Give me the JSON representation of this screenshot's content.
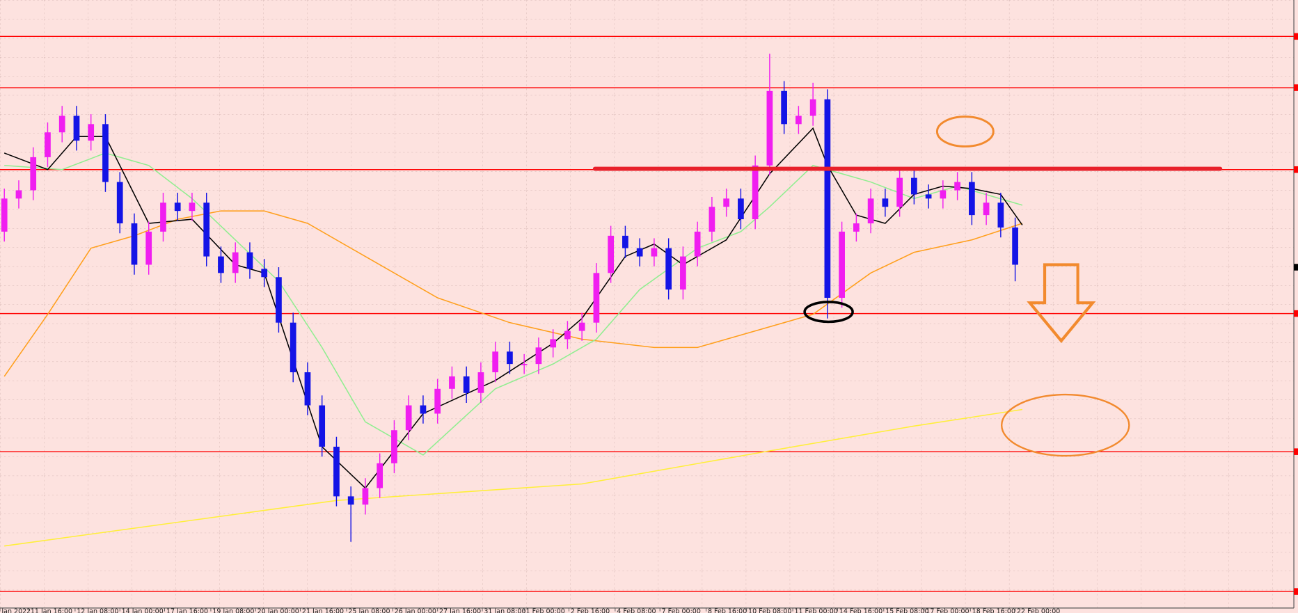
{
  "chart_data": {
    "type": "candlestick",
    "xlim": [
      -0.3,
      89.3
    ],
    "ylim": [
      5,
      740
    ],
    "xticks": [
      {
        "value": -0.3,
        "label": "Jan 2022"
      },
      {
        "value": 1.7,
        "label": "11 Jan 16:00"
      },
      {
        "value": 4.9,
        "label": "12 Jan 08:00"
      },
      {
        "value": 8,
        "label": "14 Jan 00:00"
      },
      {
        "value": 11.1,
        "label": "17 Jan 16:00"
      },
      {
        "value": 14.3,
        "label": "19 Jan 08:00"
      },
      {
        "value": 17.4,
        "label": "20 Jan 00:00"
      },
      {
        "value": 20.5,
        "label": "21 Jan 16:00"
      },
      {
        "value": 23.7,
        "label": "25 Jan 08:00"
      },
      {
        "value": 26.9,
        "label": "26 Jan 00:00"
      },
      {
        "value": 30,
        "label": "27 Jan 16:00"
      },
      {
        "value": 33.1,
        "label": "31 Jan 08:00"
      },
      {
        "value": 36,
        "label": "1 Feb 00:00"
      },
      {
        "value": 39.1,
        "label": "2 Feb 16:00"
      },
      {
        "value": 42.3,
        "label": "4 Feb 08:00"
      },
      {
        "value": 45.4,
        "label": "7 Feb 00:00"
      },
      {
        "value": 48.6,
        "label": "8 Feb 16:00"
      },
      {
        "value": 51.4,
        "label": "10 Feb 08:00"
      },
      {
        "value": 54.6,
        "label": "11 Feb 00:00"
      },
      {
        "value": 57.7,
        "label": "14 Feb 16:00"
      },
      {
        "value": 60.9,
        "label": "15 Feb 08:00"
      },
      {
        "value": 63.7,
        "label": "17 Feb 00:00"
      },
      {
        "value": 66.9,
        "label": "18 Feb 16:00"
      },
      {
        "value": 70,
        "label": "22 Feb 00:00"
      }
    ],
    "up_color": "#f01ef0",
    "down_color": "#1414e6",
    "open": [
      460,
      500,
      510,
      550,
      580,
      600,
      570,
      590,
      520,
      470,
      420,
      460,
      495,
      485,
      495,
      430,
      410,
      435,
      415,
      405,
      350,
      290,
      250,
      200,
      140,
      130,
      150,
      180,
      220,
      250,
      240,
      270,
      285,
      265,
      290,
      315,
      300,
      300,
      320,
      330,
      340,
      350,
      410,
      455,
      440,
      430,
      440,
      390,
      430,
      460,
      490,
      500,
      475,
      540,
      630,
      590,
      600,
      620,
      380,
      460,
      470,
      500,
      490,
      525,
      505,
      500,
      510,
      520,
      480,
      495,
      465
    ],
    "high": [
      512,
      522,
      562,
      592,
      612,
      612,
      602,
      602,
      532,
      482,
      472,
      507,
      507,
      507,
      507,
      442,
      447,
      447,
      427,
      417,
      362,
      302,
      262,
      212,
      152,
      162,
      192,
      232,
      262,
      262,
      282,
      297,
      297,
      302,
      327,
      327,
      312,
      332,
      342,
      352,
      362,
      422,
      467,
      467,
      452,
      452,
      452,
      442,
      472,
      502,
      512,
      512,
      552,
      675,
      642,
      612,
      640,
      632,
      472,
      482,
      512,
      512,
      537,
      537,
      517,
      522,
      532,
      532,
      507,
      507,
      477
    ],
    "low": [
      448,
      488,
      498,
      538,
      568,
      558,
      558,
      508,
      458,
      408,
      408,
      448,
      473,
      473,
      418,
      398,
      398,
      403,
      393,
      338,
      278,
      238,
      188,
      128,
      85,
      118,
      138,
      168,
      208,
      228,
      228,
      258,
      253,
      253,
      278,
      288,
      288,
      288,
      308,
      318,
      328,
      338,
      398,
      428,
      418,
      418,
      378,
      378,
      418,
      448,
      478,
      463,
      463,
      528,
      578,
      578,
      588,
      355,
      368,
      448,
      458,
      478,
      478,
      493,
      488,
      488,
      498,
      468,
      468,
      453,
      400
    ],
    "close": [
      500,
      510,
      550,
      580,
      600,
      570,
      590,
      520,
      470,
      420,
      460,
      495,
      485,
      495,
      430,
      410,
      435,
      415,
      405,
      350,
      290,
      250,
      200,
      140,
      130,
      150,
      180,
      220,
      250,
      240,
      270,
      285,
      265,
      290,
      315,
      300,
      300,
      320,
      330,
      340,
      350,
      410,
      455,
      440,
      430,
      440,
      390,
      430,
      460,
      490,
      500,
      475,
      540,
      630,
      590,
      600,
      620,
      380,
      460,
      470,
      500,
      490,
      525,
      505,
      500,
      510,
      520,
      480,
      495,
      465,
      420
    ],
    "lines": [
      {
        "color": "#ffef3a",
        "x": [
          0,
          23,
          40,
          53,
          63,
          70.5
        ],
        "values": [
          80,
          135,
          155,
          195,
          225,
          245
        ]
      },
      {
        "color": "#ff9f1c",
        "x": [
          0,
          3,
          6,
          9,
          12,
          15,
          18,
          21,
          25,
          30,
          35,
          40,
          45,
          48,
          52,
          56,
          60,
          63,
          67,
          70.5
        ],
        "values": [
          285,
          360,
          440,
          455,
          475,
          485,
          485,
          470,
          430,
          380,
          350,
          330,
          320,
          320,
          340,
          360,
          410,
          435,
          450,
          470
        ]
      },
      {
        "color": "#90ee90",
        "x": [
          0,
          4,
          7,
          10,
          13,
          16,
          19,
          22,
          25,
          29,
          34,
          38,
          41,
          44,
          48,
          51,
          53,
          56,
          57,
          60,
          63,
          66,
          70.5
        ],
        "values": [
          540,
          535,
          555,
          540,
          500,
          450,
          400,
          320,
          230,
          190,
          270,
          300,
          330,
          390,
          440,
          460,
          490,
          540,
          535,
          520,
          500,
          515,
          492
        ]
      },
      {
        "color": "#000000",
        "x": [
          0,
          3,
          5,
          7,
          10,
          13,
          16,
          18,
          22,
          25,
          29,
          34,
          38,
          40,
          43,
          45,
          47,
          50,
          53,
          56,
          57,
          59,
          61,
          63,
          65,
          67,
          69,
          70.5
        ],
        "values": [
          555,
          535,
          575,
          575,
          470,
          475,
          420,
          410,
          200,
          150,
          240,
          280,
          325,
          355,
          430,
          445,
          420,
          450,
          530,
          585,
          540,
          480,
          470,
          505,
          515,
          512,
          505,
          468
        ]
      }
    ],
    "levels": [
      696,
      634,
      535,
      361,
      194,
      25
    ],
    "level_color": "#ff0000",
    "resistance": {
      "x": [
        40.9,
        84.2
      ],
      "value": 536,
      "color": "#e8202a"
    }
  }
}
